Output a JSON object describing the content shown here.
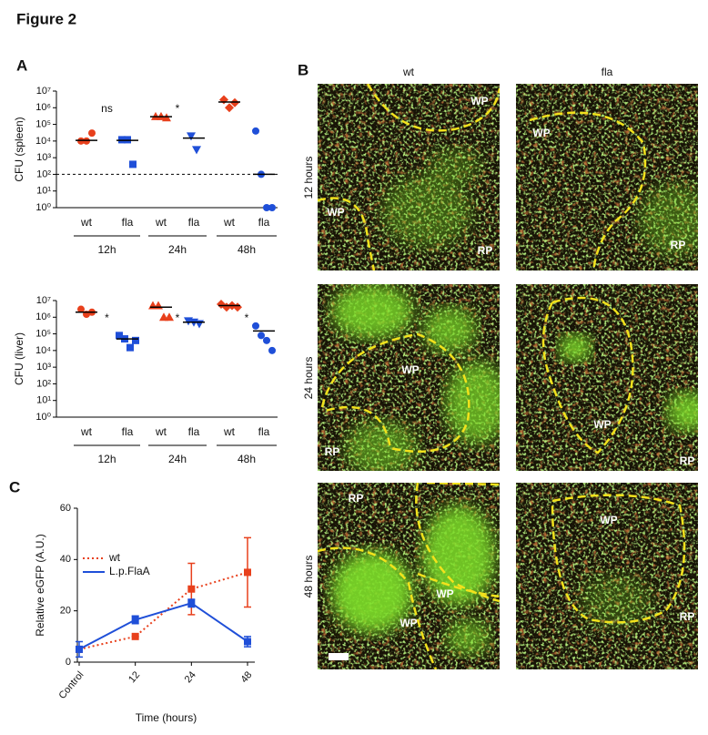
{
  "title": "Figure 2",
  "panel_labels": [
    "A",
    "B",
    "C"
  ],
  "chart_data": [
    {
      "type": "scatter",
      "ylabel": "CFU (spleen)",
      "yscale": "log",
      "ylim": [
        1,
        10000000
      ],
      "yticks": [
        {
          "value": 1,
          "label": "10⁰"
        },
        {
          "value": 10,
          "label": "10¹"
        },
        {
          "value": 100,
          "label": "10²"
        },
        {
          "value": 1000,
          "label": "10³"
        },
        {
          "value": 10000,
          "label": "10⁴"
        },
        {
          "value": 100000,
          "label": "10⁵"
        },
        {
          "value": 1000000,
          "label": "10⁶"
        },
        {
          "value": 10000000,
          "label": "10⁷"
        }
      ],
      "categories": [
        "wt",
        "fla",
        "wt",
        "fla",
        "wt",
        "fla"
      ],
      "group_labels": [
        "12h",
        "24h",
        "48h"
      ],
      "reference_line": 100,
      "annotations": [
        {
          "text": "ns",
          "group": "12h"
        },
        {
          "text": "*",
          "group": "24h"
        }
      ],
      "groups": [
        {
          "color": "#e8401c",
          "marker": "circle",
          "values": [
            10000,
            10000,
            30000
          ],
          "mean": 11000
        },
        {
          "color": "#1f4fd8",
          "marker": "square",
          "values": [
            12000,
            12000,
            400
          ],
          "mean": 11000
        },
        {
          "color": "#e8401c",
          "marker": "triangle",
          "values": [
            300000,
            300000,
            250000
          ],
          "mean": 290000
        },
        {
          "color": "#1f4fd8",
          "marker": "triangle-down",
          "values": [
            20000,
            3000
          ],
          "mean": 15000
        },
        {
          "color": "#e8401c",
          "marker": "diamond",
          "values": [
            3000000,
            1000000,
            2000000
          ],
          "mean": 2200000
        },
        {
          "color": "#1f4fd8",
          "marker": "circle",
          "values": [
            40000,
            100,
            1,
            1
          ],
          "mean": 100
        }
      ]
    },
    {
      "type": "scatter",
      "ylabel": "CFU (liver)",
      "yscale": "log",
      "ylim": [
        1,
        10000000
      ],
      "yticks": [
        {
          "value": 1,
          "label": "10⁰"
        },
        {
          "value": 10,
          "label": "10¹"
        },
        {
          "value": 100,
          "label": "10²"
        },
        {
          "value": 1000,
          "label": "10³"
        },
        {
          "value": 10000,
          "label": "10⁴"
        },
        {
          "value": 100000,
          "label": "10⁵"
        },
        {
          "value": 1000000,
          "label": "10⁶"
        },
        {
          "value": 10000000,
          "label": "10⁷"
        }
      ],
      "categories": [
        "wt",
        "fla",
        "wt",
        "fla",
        "wt",
        "fla"
      ],
      "group_labels": [
        "12h",
        "24h",
        "48h"
      ],
      "annotations": [
        {
          "text": "*",
          "group": "12h"
        },
        {
          "text": "*",
          "group": "24h"
        },
        {
          "text": "*",
          "group": "48h"
        }
      ],
      "groups": [
        {
          "color": "#e8401c",
          "marker": "circle",
          "values": [
            3000000,
            1500000,
            2000000
          ],
          "mean": 2000000
        },
        {
          "color": "#1f4fd8",
          "marker": "square",
          "values": [
            80000,
            50000,
            15000,
            40000
          ],
          "mean": 50000
        },
        {
          "color": "#e8401c",
          "marker": "triangle",
          "values": [
            5000000,
            5000000,
            1000000,
            1000000
          ],
          "mean": 4000000
        },
        {
          "color": "#1f4fd8",
          "marker": "triangle-down",
          "values": [
            600000,
            500000,
            400000
          ],
          "mean": 500000
        },
        {
          "color": "#e8401c",
          "marker": "diamond",
          "values": [
            6000000,
            4000000,
            5000000,
            4000000
          ],
          "mean": 5000000
        },
        {
          "color": "#1f4fd8",
          "marker": "circle",
          "values": [
            300000,
            80000,
            40000,
            10000
          ],
          "mean": 150000
        }
      ]
    },
    {
      "type": "line",
      "ylabel": "Relative eGFP (A.U.)",
      "xlabel": "Time (hours)",
      "categories": [
        "Control",
        "12",
        "24",
        "48"
      ],
      "ylim": [
        0,
        60
      ],
      "yticks": [
        0,
        20,
        40,
        60
      ],
      "legend": "upper left",
      "series": [
        {
          "name": "wt",
          "color": "#e8401c",
          "dashed": true,
          "values": [
            5,
            10,
            28.5,
            35
          ],
          "errors": [
            0,
            0,
            10,
            13.5
          ]
        },
        {
          "name": "L.p.FlaA",
          "color": "#1f4fd8",
          "dashed": false,
          "values": [
            5,
            16.5,
            23,
            8
          ],
          "errors": [
            3,
            1.5,
            1.5,
            2
          ]
        }
      ]
    }
  ],
  "images": {
    "columns": [
      "wt",
      "fla"
    ],
    "rows": [
      "12 hours",
      "24 hours",
      "48 hours"
    ],
    "panels": [
      {
        "labels": [
          "WP",
          "WP",
          "RP"
        ]
      },
      {
        "labels": [
          "WP",
          "RP"
        ]
      },
      {
        "labels": [
          "WP",
          "RP"
        ]
      },
      {
        "labels": [
          "WP",
          "RP"
        ]
      },
      {
        "labels": [
          "RP",
          "WP",
          "WP"
        ]
      },
      {
        "labels": [
          "WP",
          "RP"
        ]
      }
    ]
  }
}
